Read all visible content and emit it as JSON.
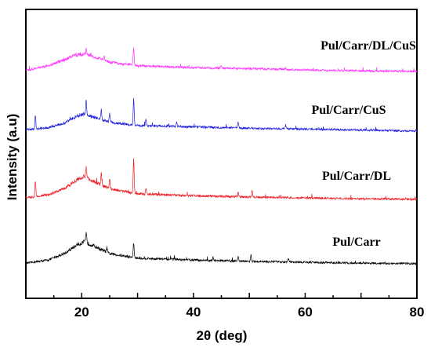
{
  "chart_data": {
    "type": "line",
    "xlabel": "2θ (deg)",
    "ylabel": "Intensity (a.u)",
    "xlim": [
      10,
      80
    ],
    "x_ticks": [
      20,
      40,
      60,
      80
    ],
    "x_tick_labels": [
      "20",
      "40",
      "60",
      "80"
    ],
    "grid": false,
    "legend": "none (series labelled directly on the plot)",
    "series": [
      {
        "name": "Pul/Carr",
        "color": "#000000",
        "profile": [
          [
            10,
            0.03
          ],
          [
            14,
            0.1
          ],
          [
            17,
            0.25
          ],
          [
            19,
            0.42
          ],
          [
            20.5,
            0.5
          ],
          [
            22,
            0.42
          ],
          [
            25,
            0.24
          ],
          [
            30,
            0.14
          ],
          [
            40,
            0.1
          ],
          [
            50,
            0.07
          ],
          [
            60,
            0.05
          ],
          [
            70,
            0.03
          ],
          [
            80,
            0.02
          ]
        ],
        "peaks": [
          [
            20.8,
            0.2
          ],
          [
            24.5,
            0.1
          ],
          [
            29.3,
            0.32
          ],
          [
            43.5,
            0.08
          ],
          [
            48,
            0.1
          ],
          [
            50.3,
            0.14
          ],
          [
            57,
            0.07
          ]
        ]
      },
      {
        "name": "Pul/Carr/DL",
        "color": "#ee1c24",
        "profile": [
          [
            10,
            0.05
          ],
          [
            14,
            0.12
          ],
          [
            17,
            0.26
          ],
          [
            19,
            0.44
          ],
          [
            20.5,
            0.52
          ],
          [
            22,
            0.42
          ],
          [
            25,
            0.25
          ],
          [
            30,
            0.14
          ],
          [
            40,
            0.1
          ],
          [
            50,
            0.07
          ],
          [
            60,
            0.05
          ],
          [
            70,
            0.03
          ],
          [
            80,
            0.02
          ]
        ],
        "peaks": [
          [
            11.7,
            0.35
          ],
          [
            20.8,
            0.22
          ],
          [
            23.5,
            0.26
          ],
          [
            25,
            0.22
          ],
          [
            29.3,
            0.75
          ],
          [
            31.5,
            0.12
          ],
          [
            48,
            0.1
          ],
          [
            50.5,
            0.14
          ]
        ]
      },
      {
        "name": "Pul/Carr/CuS",
        "color": "#2020dd",
        "profile": [
          [
            10,
            0.05
          ],
          [
            14,
            0.09
          ],
          [
            17,
            0.2
          ],
          [
            19,
            0.34
          ],
          [
            20.5,
            0.4
          ],
          [
            22,
            0.33
          ],
          [
            25,
            0.21
          ],
          [
            30,
            0.14
          ],
          [
            40,
            0.11
          ],
          [
            50,
            0.08
          ],
          [
            60,
            0.06
          ],
          [
            70,
            0.04
          ],
          [
            80,
            0.02
          ]
        ],
        "peaks": [
          [
            11.7,
            0.3
          ],
          [
            20.8,
            0.3
          ],
          [
            23.5,
            0.22
          ],
          [
            25,
            0.18
          ],
          [
            29.3,
            0.6
          ],
          [
            31.5,
            0.14
          ],
          [
            37,
            0.1
          ],
          [
            48,
            0.12
          ],
          [
            56.5,
            0.08
          ]
        ]
      },
      {
        "name": "Pul/Carr/DL/CuS",
        "color": "#ff33ff",
        "profile": [
          [
            10,
            0.04
          ],
          [
            14,
            0.14
          ],
          [
            17,
            0.28
          ],
          [
            19,
            0.38
          ],
          [
            20.5,
            0.4
          ],
          [
            22,
            0.35
          ],
          [
            25,
            0.22
          ],
          [
            30,
            0.14
          ],
          [
            40,
            0.1
          ],
          [
            50,
            0.08
          ],
          [
            60,
            0.05
          ],
          [
            70,
            0.03
          ],
          [
            80,
            0.02
          ]
        ],
        "peaks": [
          [
            20.8,
            0.12
          ],
          [
            24,
            0.1
          ],
          [
            29.3,
            0.4
          ],
          [
            45,
            0.05
          ],
          [
            56.5,
            0.05
          ]
        ]
      }
    ]
  }
}
